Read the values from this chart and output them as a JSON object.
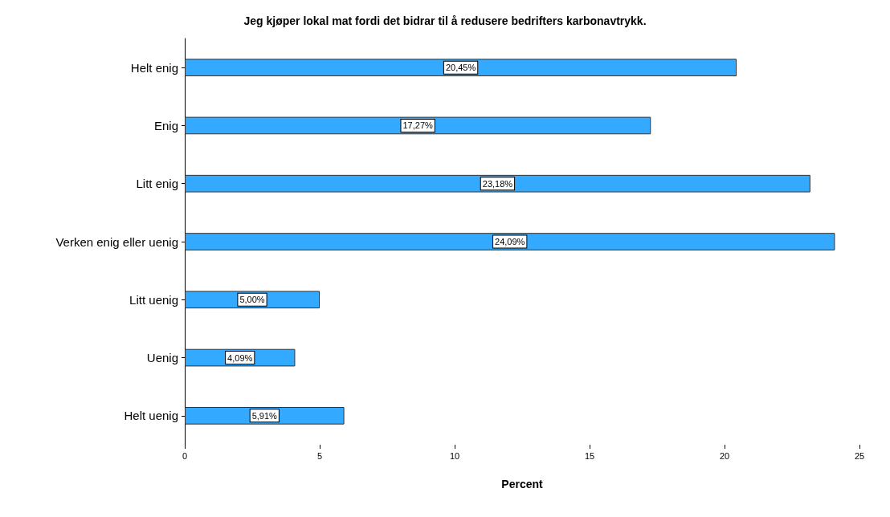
{
  "chart_data": {
    "type": "bar",
    "orientation": "horizontal",
    "title": "Jeg kjøper lokal mat fordi det bidrar til å redusere bedrifters karbonavtrykk.",
    "xlabel": "Percent",
    "categories": [
      "Helt enig",
      "Enig",
      "Litt enig",
      "Verken enig eller uenig",
      "Litt uenig",
      "Uenig",
      "Helt uenig"
    ],
    "values": [
      20.45,
      17.27,
      23.18,
      24.09,
      5.0,
      4.09,
      5.91
    ],
    "value_labels": [
      "20,45%",
      "17,27%",
      "23,18%",
      "24,09%",
      "5,00%",
      "4,09%",
      "5,91%"
    ],
    "color": "#33aaff",
    "xlim": [
      0,
      25
    ],
    "xticks": [
      0,
      5,
      10,
      15,
      20,
      25
    ],
    "grid": false
  }
}
